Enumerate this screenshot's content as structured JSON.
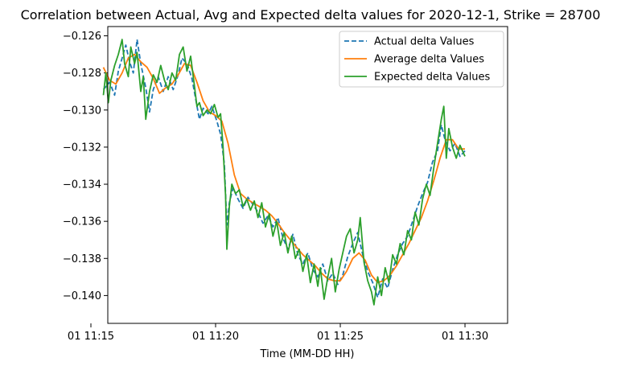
{
  "chart_data": {
    "type": "line",
    "title": "Correlation between Actual, Avg and Expected delta values for 2020-12-1, Strike = 28700",
    "xlabel": "Time (MM-DD HH)",
    "ylabel": "",
    "xlim": [
      "11:15:30",
      "11:30:00"
    ],
    "ylim": [
      -0.1415,
      -0.1255
    ],
    "x_ticks": [
      {
        "time": "11:15:00",
        "label": "01 11:15"
      },
      {
        "time": "11:20:00",
        "label": "01 11:20"
      },
      {
        "time": "11:25:00",
        "label": "01 11:25"
      },
      {
        "time": "11:30:00",
        "label": "01 11:30"
      }
    ],
    "y_ticks": [
      {
        "value": -0.126,
        "label": "−0.126"
      },
      {
        "value": -0.128,
        "label": "−0.128"
      },
      {
        "value": -0.13,
        "label": "−0.130"
      },
      {
        "value": -0.132,
        "label": "−0.132"
      },
      {
        "value": -0.134,
        "label": "−0.134"
      },
      {
        "value": -0.136,
        "label": "−0.136"
      },
      {
        "value": -0.138,
        "label": "−0.138"
      },
      {
        "value": -0.14,
        "label": "−0.140"
      }
    ],
    "grid": false,
    "legend_position": "top-right",
    "series": [
      {
        "name": "Actual delta Values",
        "color": "#1f77b4",
        "style": "dashed",
        "points": [
          [
            "11:15:30",
            -0.1289
          ],
          [
            "11:15:45",
            -0.1285
          ],
          [
            "11:15:57",
            -0.1292
          ],
          [
            "11:16:06",
            -0.1279
          ],
          [
            "11:16:15",
            -0.1272
          ],
          [
            "11:16:24",
            -0.1265
          ],
          [
            "11:16:33",
            -0.1274
          ],
          [
            "11:16:42",
            -0.128
          ],
          [
            "11:16:51",
            -0.1262
          ],
          [
            "11:17:00",
            -0.1275
          ],
          [
            "11:17:12",
            -0.1288
          ],
          [
            "11:17:21",
            -0.1301
          ],
          [
            "11:17:30",
            -0.1289
          ],
          [
            "11:17:42",
            -0.1282
          ],
          [
            "11:17:54",
            -0.129
          ],
          [
            "11:18:06",
            -0.1282
          ],
          [
            "11:18:18",
            -0.1289
          ],
          [
            "11:18:30",
            -0.1281
          ],
          [
            "11:18:39",
            -0.1272
          ],
          [
            "11:18:51",
            -0.1275
          ],
          [
            "11:19:03",
            -0.1283
          ],
          [
            "11:19:12",
            -0.1294
          ],
          [
            "11:19:21",
            -0.1305
          ],
          [
            "11:19:30",
            -0.1299
          ],
          [
            "11:19:42",
            -0.1302
          ],
          [
            "11:19:51",
            -0.1298
          ],
          [
            "11:20:03",
            -0.1306
          ],
          [
            "11:20:12",
            -0.1313
          ],
          [
            "11:20:21",
            -0.1329
          ],
          [
            "11:20:27",
            -0.1362
          ],
          [
            "11:20:33",
            -0.135
          ],
          [
            "11:20:42",
            -0.1342
          ],
          [
            "11:20:54",
            -0.1348
          ],
          [
            "11:21:06",
            -0.1353
          ],
          [
            "11:21:18",
            -0.1347
          ],
          [
            "11:21:30",
            -0.1351
          ],
          [
            "11:21:42",
            -0.1355
          ],
          [
            "11:21:54",
            -0.1361
          ],
          [
            "11:22:06",
            -0.1357
          ],
          [
            "11:22:18",
            -0.1363
          ],
          [
            "11:22:30",
            -0.1358
          ],
          [
            "11:22:42",
            -0.1369
          ],
          [
            "11:22:54",
            -0.1375
          ],
          [
            "11:23:06",
            -0.1367
          ],
          [
            "11:23:18",
            -0.1378
          ],
          [
            "11:23:30",
            -0.1383
          ],
          [
            "11:23:42",
            -0.1377
          ],
          [
            "11:23:54",
            -0.1386
          ],
          [
            "11:24:06",
            -0.139
          ],
          [
            "11:24:18",
            -0.1383
          ],
          [
            "11:24:30",
            -0.1392
          ],
          [
            "11:24:42",
            -0.1388
          ],
          [
            "11:24:54",
            -0.1394
          ],
          [
            "11:25:06",
            -0.1389
          ],
          [
            "11:25:18",
            -0.1379
          ],
          [
            "11:25:30",
            -0.1372
          ],
          [
            "11:25:42",
            -0.1366
          ],
          [
            "11:25:54",
            -0.1378
          ],
          [
            "11:26:06",
            -0.1387
          ],
          [
            "11:26:18",
            -0.1393
          ],
          [
            "11:26:30",
            -0.1401
          ],
          [
            "11:26:42",
            -0.1391
          ],
          [
            "11:26:54",
            -0.1396
          ],
          [
            "11:27:06",
            -0.1386
          ],
          [
            "11:27:18",
            -0.1378
          ],
          [
            "11:27:30",
            -0.1372
          ],
          [
            "11:27:42",
            -0.1368
          ],
          [
            "11:27:54",
            -0.136
          ],
          [
            "11:28:06",
            -0.1352
          ],
          [
            "11:28:18",
            -0.1345
          ],
          [
            "11:28:30",
            -0.1339
          ],
          [
            "11:28:42",
            -0.1328
          ],
          [
            "11:28:54",
            -0.1322
          ],
          [
            "11:29:03",
            -0.1308
          ],
          [
            "11:29:12",
            -0.1316
          ],
          [
            "11:29:24",
            -0.1322
          ],
          [
            "11:29:36",
            -0.1318
          ],
          [
            "11:29:48",
            -0.1325
          ],
          [
            "11:30:00",
            -0.1322
          ]
        ]
      },
      {
        "name": "Average delta Values",
        "color": "#ff7f0e",
        "style": "solid",
        "points": [
          [
            "11:15:30",
            -0.1277
          ],
          [
            "11:15:45",
            -0.1284
          ],
          [
            "11:16:00",
            -0.1286
          ],
          [
            "11:16:15",
            -0.128
          ],
          [
            "11:16:30",
            -0.1272
          ],
          [
            "11:16:45",
            -0.127
          ],
          [
            "11:17:00",
            -0.1274
          ],
          [
            "11:17:15",
            -0.1277
          ],
          [
            "11:17:30",
            -0.1283
          ],
          [
            "11:17:45",
            -0.1291
          ],
          [
            "11:18:00",
            -0.1288
          ],
          [
            "11:18:15",
            -0.1286
          ],
          [
            "11:18:30",
            -0.1281
          ],
          [
            "11:18:45",
            -0.1275
          ],
          [
            "11:19:00",
            -0.1276
          ],
          [
            "11:19:15",
            -0.1285
          ],
          [
            "11:19:30",
            -0.1295
          ],
          [
            "11:19:45",
            -0.1301
          ],
          [
            "11:20:00",
            -0.1303
          ],
          [
            "11:20:15",
            -0.1306
          ],
          [
            "11:20:30",
            -0.1318
          ],
          [
            "11:20:45",
            -0.1335
          ],
          [
            "11:21:00",
            -0.1345
          ],
          [
            "11:21:15",
            -0.1348
          ],
          [
            "11:21:30",
            -0.135
          ],
          [
            "11:21:45",
            -0.1352
          ],
          [
            "11:22:00",
            -0.1354
          ],
          [
            "11:22:15",
            -0.1357
          ],
          [
            "11:22:30",
            -0.1361
          ],
          [
            "11:22:45",
            -0.1366
          ],
          [
            "11:23:00",
            -0.137
          ],
          [
            "11:23:15",
            -0.1374
          ],
          [
            "11:23:30",
            -0.1378
          ],
          [
            "11:23:45",
            -0.1381
          ],
          [
            "11:24:00",
            -0.1384
          ],
          [
            "11:24:15",
            -0.1388
          ],
          [
            "11:24:30",
            -0.1391
          ],
          [
            "11:24:45",
            -0.1392
          ],
          [
            "11:25:00",
            -0.1392
          ],
          [
            "11:25:15",
            -0.1387
          ],
          [
            "11:25:30",
            -0.138
          ],
          [
            "11:25:45",
            -0.1377
          ],
          [
            "11:26:00",
            -0.1381
          ],
          [
            "11:26:15",
            -0.1389
          ],
          [
            "11:26:30",
            -0.1393
          ],
          [
            "11:26:45",
            -0.1392
          ],
          [
            "11:27:00",
            -0.1389
          ],
          [
            "11:27:15",
            -0.1384
          ],
          [
            "11:27:30",
            -0.1378
          ],
          [
            "11:27:45",
            -0.1372
          ],
          [
            "11:28:00",
            -0.1365
          ],
          [
            "11:28:15",
            -0.1358
          ],
          [
            "11:28:30",
            -0.1349
          ],
          [
            "11:28:45",
            -0.1338
          ],
          [
            "11:29:00",
            -0.1326
          ],
          [
            "11:29:15",
            -0.1316
          ],
          [
            "11:29:30",
            -0.1316
          ],
          [
            "11:29:45",
            -0.1321
          ],
          [
            "11:30:00",
            -0.1321
          ]
        ]
      },
      {
        "name": "Expected delta Values",
        "color": "#2ca02c",
        "style": "solid",
        "points": [
          [
            "11:15:30",
            -0.1292
          ],
          [
            "11:15:36",
            -0.128
          ],
          [
            "11:15:42",
            -0.1296
          ],
          [
            "11:15:48",
            -0.1284
          ],
          [
            "11:15:57",
            -0.1276
          ],
          [
            "11:16:06",
            -0.127
          ],
          [
            "11:16:15",
            -0.1262
          ],
          [
            "11:16:21",
            -0.1275
          ],
          [
            "11:16:30",
            -0.1282
          ],
          [
            "11:16:36",
            -0.1266
          ],
          [
            "11:16:45",
            -0.1275
          ],
          [
            "11:16:51",
            -0.1269
          ],
          [
            "11:17:00",
            -0.129
          ],
          [
            "11:17:06",
            -0.1282
          ],
          [
            "11:17:12",
            -0.1305
          ],
          [
            "11:17:21",
            -0.129
          ],
          [
            "11:17:30",
            -0.1281
          ],
          [
            "11:17:39",
            -0.1285
          ],
          [
            "11:17:48",
            -0.1276
          ],
          [
            "11:17:57",
            -0.1284
          ],
          [
            "11:18:06",
            -0.1289
          ],
          [
            "11:18:15",
            -0.128
          ],
          [
            "11:18:24",
            -0.1284
          ],
          [
            "11:18:33",
            -0.127
          ],
          [
            "11:18:42",
            -0.1266
          ],
          [
            "11:18:51",
            -0.1279
          ],
          [
            "11:19:00",
            -0.1271
          ],
          [
            "11:19:09",
            -0.1287
          ],
          [
            "11:19:15",
            -0.1298
          ],
          [
            "11:19:21",
            -0.1296
          ],
          [
            "11:19:30",
            -0.1303
          ],
          [
            "11:19:39",
            -0.13
          ],
          [
            "11:19:48",
            -0.1302
          ],
          [
            "11:19:57",
            -0.1297
          ],
          [
            "11:20:06",
            -0.1304
          ],
          [
            "11:20:12",
            -0.1302
          ],
          [
            "11:20:18",
            -0.132
          ],
          [
            "11:20:24",
            -0.1346
          ],
          [
            "11:20:27",
            -0.1375
          ],
          [
            "11:20:33",
            -0.1352
          ],
          [
            "11:20:39",
            -0.134
          ],
          [
            "11:20:48",
            -0.1345
          ],
          [
            "11:20:57",
            -0.1343
          ],
          [
            "11:21:06",
            -0.1352
          ],
          [
            "11:21:15",
            -0.1348
          ],
          [
            "11:21:24",
            -0.1354
          ],
          [
            "11:21:33",
            -0.1349
          ],
          [
            "11:21:42",
            -0.1358
          ],
          [
            "11:21:51",
            -0.135
          ],
          [
            "11:22:00",
            -0.1363
          ],
          [
            "11:22:09",
            -0.1356
          ],
          [
            "11:22:18",
            -0.1368
          ],
          [
            "11:22:27",
            -0.136
          ],
          [
            "11:22:36",
            -0.1373
          ],
          [
            "11:22:45",
            -0.1366
          ],
          [
            "11:22:54",
            -0.1377
          ],
          [
            "11:23:03",
            -0.1368
          ],
          [
            "11:23:12",
            -0.138
          ],
          [
            "11:23:21",
            -0.1375
          ],
          [
            "11:23:30",
            -0.1387
          ],
          [
            "11:23:39",
            -0.1378
          ],
          [
            "11:23:48",
            -0.1393
          ],
          [
            "11:23:57",
            -0.1383
          ],
          [
            "11:24:06",
            -0.1395
          ],
          [
            "11:24:12",
            -0.1385
          ],
          [
            "11:24:21",
            -0.1402
          ],
          [
            "11:24:30",
            -0.139
          ],
          [
            "11:24:39",
            -0.138
          ],
          [
            "11:24:48",
            -0.1398
          ],
          [
            "11:24:57",
            -0.1386
          ],
          [
            "11:25:06",
            -0.1377
          ],
          [
            "11:25:15",
            -0.1368
          ],
          [
            "11:25:24",
            -0.1364
          ],
          [
            "11:25:33",
            -0.1377
          ],
          [
            "11:25:42",
            -0.137
          ],
          [
            "11:25:48",
            -0.1358
          ],
          [
            "11:25:57",
            -0.1382
          ],
          [
            "11:26:06",
            -0.1392
          ],
          [
            "11:26:15",
            -0.1398
          ],
          [
            "11:26:21",
            -0.1405
          ],
          [
            "11:26:30",
            -0.139
          ],
          [
            "11:26:39",
            -0.14
          ],
          [
            "11:26:48",
            -0.1385
          ],
          [
            "11:26:57",
            -0.1393
          ],
          [
            "11:27:06",
            -0.1378
          ],
          [
            "11:27:15",
            -0.1383
          ],
          [
            "11:27:24",
            -0.1372
          ],
          [
            "11:27:33",
            -0.1378
          ],
          [
            "11:27:42",
            -0.1365
          ],
          [
            "11:27:51",
            -0.137
          ],
          [
            "11:28:00",
            -0.1355
          ],
          [
            "11:28:09",
            -0.1362
          ],
          [
            "11:28:18",
            -0.1348
          ],
          [
            "11:28:27",
            -0.134
          ],
          [
            "11:28:36",
            -0.1346
          ],
          [
            "11:28:45",
            -0.1331
          ],
          [
            "11:28:54",
            -0.1318
          ],
          [
            "11:29:03",
            -0.1305
          ],
          [
            "11:29:09",
            -0.1298
          ],
          [
            "11:29:15",
            -0.1326
          ],
          [
            "11:29:21",
            -0.131
          ],
          [
            "11:29:30",
            -0.132
          ],
          [
            "11:29:39",
            -0.1326
          ],
          [
            "11:29:48",
            -0.1319
          ],
          [
            "11:30:00",
            -0.1325
          ]
        ]
      }
    ]
  }
}
